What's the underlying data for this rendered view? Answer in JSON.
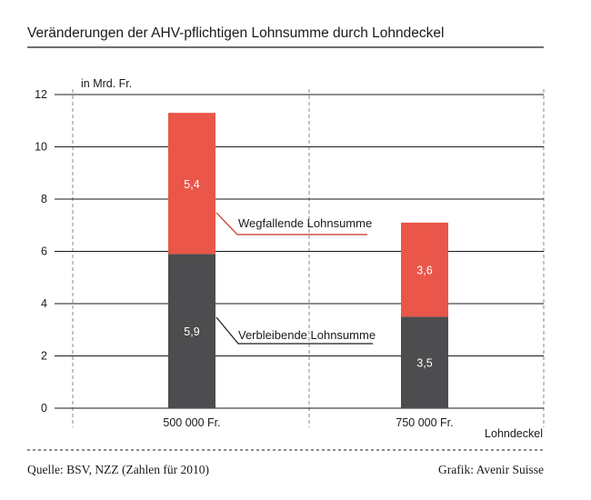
{
  "chart_data": {
    "type": "bar",
    "stacked": true,
    "title": "Veränderungen der AHV-pflichtigen Lohnsumme durch Lohndeckel",
    "ylabel": "in Mrd. Fr.",
    "xlabel": "Lohndeckel",
    "categories": [
      "500 000 Fr.",
      "750 000 Fr."
    ],
    "ylim": [
      0,
      12
    ],
    "yticks": [
      0,
      2,
      4,
      6,
      8,
      10,
      12
    ],
    "grid": true,
    "series": [
      {
        "name": "Verbleibende Lohnsumme",
        "values": [
          5.9,
          3.5
        ],
        "labels": [
          "5,9",
          "3,5"
        ],
        "color": "#4d4d4f"
      },
      {
        "name": "Wegfallende Lohnsumme",
        "values": [
          5.4,
          3.6
        ],
        "labels": [
          "5,4",
          "3,6"
        ],
        "color": "#ea5649"
      }
    ],
    "annotation_line_colors": {
      "Wegfallende Lohnsumme": "#cc2a22",
      "Verbleibende Lohnsumme": "#1a1a1a"
    },
    "source": "Quelle: BSV, NZZ (Zahlen für 2010)",
    "credit": "Grafik: Avenir Suisse"
  }
}
